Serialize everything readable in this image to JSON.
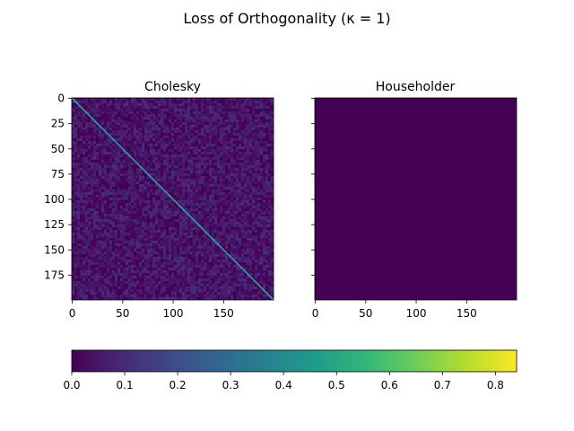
{
  "suptitle": "Loss of Orthogonality (κ = 1)",
  "chart_data": [
    {
      "type": "heatmap",
      "title": "Cholesky",
      "shape": [
        200,
        200
      ],
      "description_of_values": "off-diagonal ≈ 0.03–0.06 noise, diagonal ≈ 0.4",
      "offdiag_value_range": [
        0.02,
        0.07
      ],
      "diagonal_value": 0.4,
      "x_ticks": [
        "0",
        "50",
        "100",
        "150"
      ],
      "y_ticks": [
        "0",
        "25",
        "50",
        "75",
        "100",
        "125",
        "150",
        "175"
      ],
      "xlim": [
        0,
        199
      ],
      "ylim": [
        199,
        0
      ]
    },
    {
      "type": "heatmap",
      "title": "Householder",
      "shape": [
        200,
        200
      ],
      "uniform_value": 0.0,
      "x_ticks": [
        "0",
        "50",
        "100",
        "150"
      ],
      "y_ticks": [],
      "xlim": [
        0,
        199
      ],
      "ylim": [
        199,
        0
      ]
    }
  ],
  "colorbar": {
    "colormap": "viridis",
    "range": [
      0.0,
      0.84
    ],
    "ticks": [
      "0.0",
      "0.1",
      "0.2",
      "0.3",
      "0.4",
      "0.5",
      "0.6",
      "0.7",
      "0.8"
    ],
    "colors": [
      "#440154",
      "#482878",
      "#3e4989",
      "#31688e",
      "#26828e",
      "#1f9e89",
      "#35b779",
      "#6ece58",
      "#b5de2b",
      "#fde725"
    ]
  }
}
